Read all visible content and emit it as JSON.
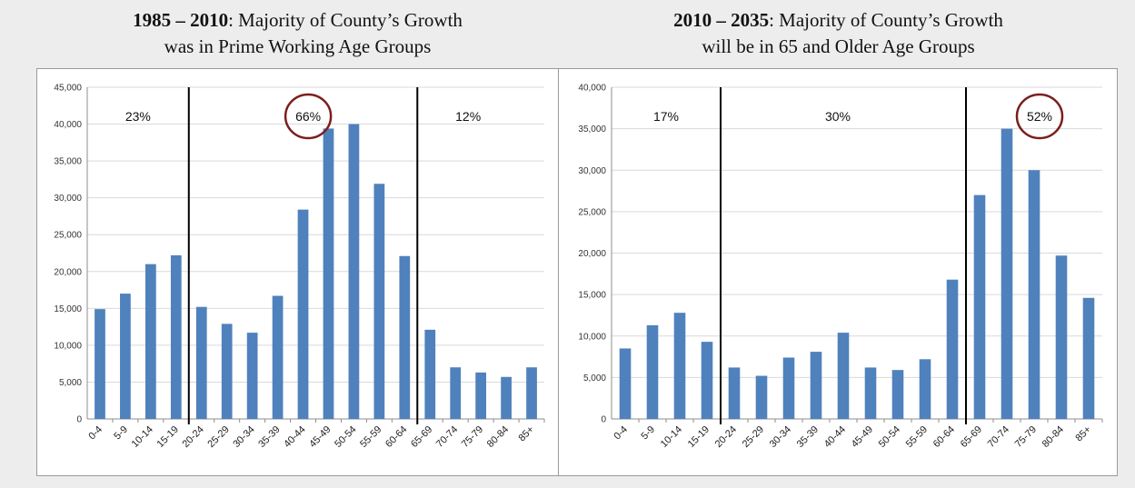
{
  "charts": [
    {
      "title_bold": "1985 – 2010",
      "title_rest": ": Majority of County’s Growth",
      "title_line2": "was in Prime Working Age Groups",
      "chart_data": {
        "type": "bar",
        "categories": [
          "0-4",
          "5-9",
          "10-14",
          "15-19",
          "20-24",
          "25-29",
          "30-34",
          "35-39",
          "40-44",
          "45-49",
          "50-54",
          "55-59",
          "60-64",
          "65-69",
          "70-74",
          "75-79",
          "80-84",
          "85+"
        ],
        "values": [
          14900,
          17000,
          21000,
          22200,
          15200,
          12900,
          11700,
          16700,
          28400,
          39400,
          40000,
          31900,
          22100,
          12100,
          7000,
          6300,
          5700,
          7000
        ],
        "ylim": [
          0,
          45000
        ],
        "yticks": [
          "0",
          "5,000",
          "10,000",
          "15,000",
          "20,000",
          "25,000",
          "30,000",
          "35,000",
          "40,000",
          "45,000"
        ],
        "grid": true,
        "color": "#4f81bd",
        "dividers_after": [
          3,
          12
        ],
        "annotations": [
          {
            "text": "23%",
            "center_category": 1.5,
            "circled": false
          },
          {
            "text": "66%",
            "center_category": 8.2,
            "circled": true
          },
          {
            "text": "12%",
            "center_category": 14.5,
            "circled": false
          }
        ]
      }
    },
    {
      "title_bold": "2010 – 2035",
      "title_rest": ": Majority of County’s Growth",
      "title_line2": "will be in 65 and Older Age Groups",
      "chart_data": {
        "type": "bar",
        "categories": [
          "0-4",
          "5-9",
          "10-14",
          "15-19",
          "20-24",
          "25-29",
          "30-34",
          "35-39",
          "40-44",
          "45-49",
          "50-54",
          "55-59",
          "60-64",
          "65-69",
          "70-74",
          "75-79",
          "80-84",
          "85+"
        ],
        "values": [
          8500,
          11300,
          12800,
          9300,
          6200,
          5200,
          7400,
          8100,
          10400,
          6200,
          5900,
          7200,
          16800,
          27000,
          35000,
          30000,
          19700,
          14600
        ],
        "ylim": [
          0,
          40000
        ],
        "yticks": [
          "0",
          "5,000",
          "10,000",
          "15,000",
          "20,000",
          "25,000",
          "30,000",
          "35,000",
          "40,000"
        ],
        "grid": true,
        "color": "#4f81bd",
        "dividers_after": [
          3,
          12
        ],
        "annotations": [
          {
            "text": "17%",
            "center_category": 1.5,
            "circled": false
          },
          {
            "text": "30%",
            "center_category": 7.8,
            "circled": false
          },
          {
            "text": "52%",
            "center_category": 15.2,
            "circled": true
          }
        ]
      }
    }
  ],
  "colors": {
    "bar": "#4f81bd",
    "grid": "#d9d9d9",
    "axis": "#8c8c8c",
    "circle": "#7b1e1e",
    "divider": "#000000"
  }
}
